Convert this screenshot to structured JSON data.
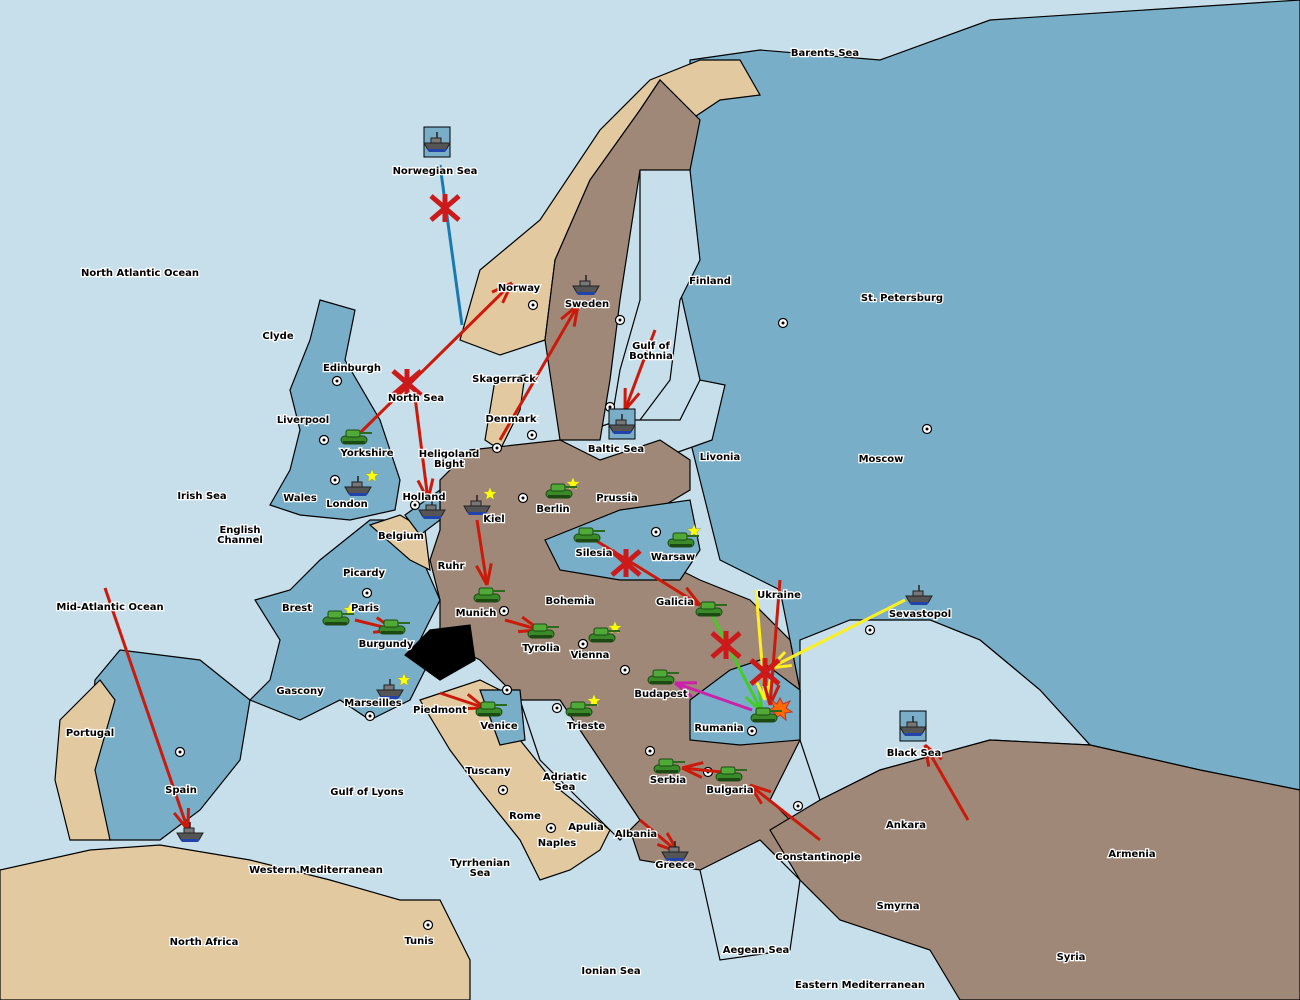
{
  "colors": {
    "sea": "#c6dfea",
    "blue_power": "#78aec8",
    "brown_power": "#a08878",
    "tan_power": "#e2c9a0",
    "neutral_switzerland": "#000000",
    "order_red": "#cc1a0a",
    "order_blue": "#1a7ab0",
    "order_yellow": "#ffee22",
    "order_green": "#44cc22",
    "order_magenta": "#cc22aa",
    "supply_star": "#ffff00"
  },
  "territories": [
    "Barents Sea",
    "Norwegian Sea",
    "North Atlantic Ocean",
    "Finland",
    "St. Petersburg",
    "Norway",
    "Sweden",
    "Clyde",
    "Edinburgh",
    "Gulf of Bothnia",
    "Skagerrack",
    "North Sea",
    "Denmark",
    "Liverpool",
    "Baltic Sea",
    "Livonia",
    "Moscow",
    "Yorkshire",
    "Heligoland Bight",
    "Irish Sea",
    "Wales",
    "London",
    "Holland",
    "Prussia",
    "Berlin",
    "Kiel",
    "English Channel",
    "Belgium",
    "Silesia",
    "Warsaw",
    "Ruhr",
    "Picardy",
    "Ukraine",
    "Galicia",
    "Bohemia",
    "Mid-Atlantic Ocean",
    "Brest",
    "Paris",
    "Sevastopol",
    "Munich",
    "Burgundy",
    "Tyrolia",
    "Vienna",
    "Gascony",
    "Budapest",
    "Marseilles",
    "Piedmont",
    "Venice",
    "Trieste",
    "Rumania",
    "Portugal",
    "Black Sea",
    "Tuscany",
    "Adriatic Sea",
    "Serbia",
    "Spain",
    "Gulf of Lyons",
    "Bulgaria",
    "Rome",
    "Apulia",
    "Ankara",
    "Albania",
    "Naples",
    "Armenia",
    "Constantinople",
    "Greece",
    "Tyrrhenian Sea",
    "Western Mediterranean",
    "Smyrna",
    "North Africa",
    "Tunis",
    "Aegean Sea",
    "Ionian Sea",
    "Syria",
    "Eastern Mediterranean"
  ],
  "units": [
    {
      "type": "army",
      "territory": "Yorkshire"
    },
    {
      "type": "fleet",
      "territory": "London"
    },
    {
      "type": "fleet",
      "territory": "Holland"
    },
    {
      "type": "fleet",
      "territory": "Kiel"
    },
    {
      "type": "army",
      "territory": "Berlin"
    },
    {
      "type": "army",
      "territory": "Silesia"
    },
    {
      "type": "army",
      "territory": "Warsaw"
    },
    {
      "type": "army",
      "territory": "Munich"
    },
    {
      "type": "army",
      "territory": "Brest"
    },
    {
      "type": "army",
      "territory": "Burgundy"
    },
    {
      "type": "army",
      "territory": "Tyrolia"
    },
    {
      "type": "army",
      "territory": "Vienna"
    },
    {
      "type": "army",
      "territory": "Budapest"
    },
    {
      "type": "army",
      "territory": "Galicia"
    },
    {
      "type": "army",
      "territory": "Rumania"
    },
    {
      "type": "army",
      "territory": "Serbia"
    },
    {
      "type": "army",
      "territory": "Bulgaria"
    },
    {
      "type": "army",
      "territory": "Piedmont"
    },
    {
      "type": "army",
      "territory": "Trieste"
    },
    {
      "type": "fleet",
      "territory": "Marseilles"
    },
    {
      "type": "fleet",
      "territory": "Greece"
    },
    {
      "type": "fleet",
      "territory": "Spain"
    },
    {
      "type": "fleet",
      "territory": "Sweden"
    },
    {
      "type": "fleet",
      "territory": "Norwegian Sea",
      "boxed": true
    },
    {
      "type": "fleet",
      "territory": "Baltic Sea",
      "boxed": true
    },
    {
      "type": "fleet",
      "territory": "Sevastopol"
    },
    {
      "type": "fleet",
      "territory": "Black Sea",
      "boxed": true
    }
  ],
  "orders": [
    {
      "from": "Norwegian Sea",
      "to": "North Sea",
      "color": "blue",
      "failed": true
    },
    {
      "from": "Yorkshire",
      "to": "Norway",
      "color": "red",
      "failed": true
    },
    {
      "from": "North Sea",
      "to": "Holland",
      "color": "red"
    },
    {
      "from": "Denmark",
      "to": "Sweden",
      "color": "red"
    },
    {
      "from": "Gulf of Bothnia",
      "to": "Baltic Sea",
      "color": "red"
    },
    {
      "from": "Kiel",
      "to": "Munich",
      "color": "red"
    },
    {
      "from": "Munich",
      "to": "Tyrolia",
      "color": "red"
    },
    {
      "from": "Brest",
      "to": "Burgundy",
      "color": "red"
    },
    {
      "from": "Silesia",
      "to": "Galicia",
      "color": "red",
      "failed": true
    },
    {
      "from": "Galicia",
      "to": "Rumania",
      "color": "green",
      "failed": true
    },
    {
      "from": "Ukraine",
      "to": "Rumania",
      "color": "yellow"
    },
    {
      "from": "Sevastopol",
      "to": "Rumania",
      "color": "yellow"
    },
    {
      "from": "Ukraine",
      "to": "Rumania",
      "color": "red",
      "failed": true
    },
    {
      "from": "Rumania",
      "to": "Budapest",
      "color": "magenta"
    },
    {
      "from": "Bulgaria",
      "to": "Serbia",
      "color": "red"
    },
    {
      "from": "Constantinople",
      "to": "Bulgaria",
      "color": "red"
    },
    {
      "from": "Albania",
      "to": "Greece",
      "color": "red"
    },
    {
      "from": "Piedmont",
      "to": "Venice",
      "color": "red"
    },
    {
      "from": "Mid-Atlantic Ocean",
      "to": "Spain",
      "color": "red"
    },
    {
      "from": "Ankara",
      "to": "Black Sea",
      "color": "red"
    }
  ]
}
